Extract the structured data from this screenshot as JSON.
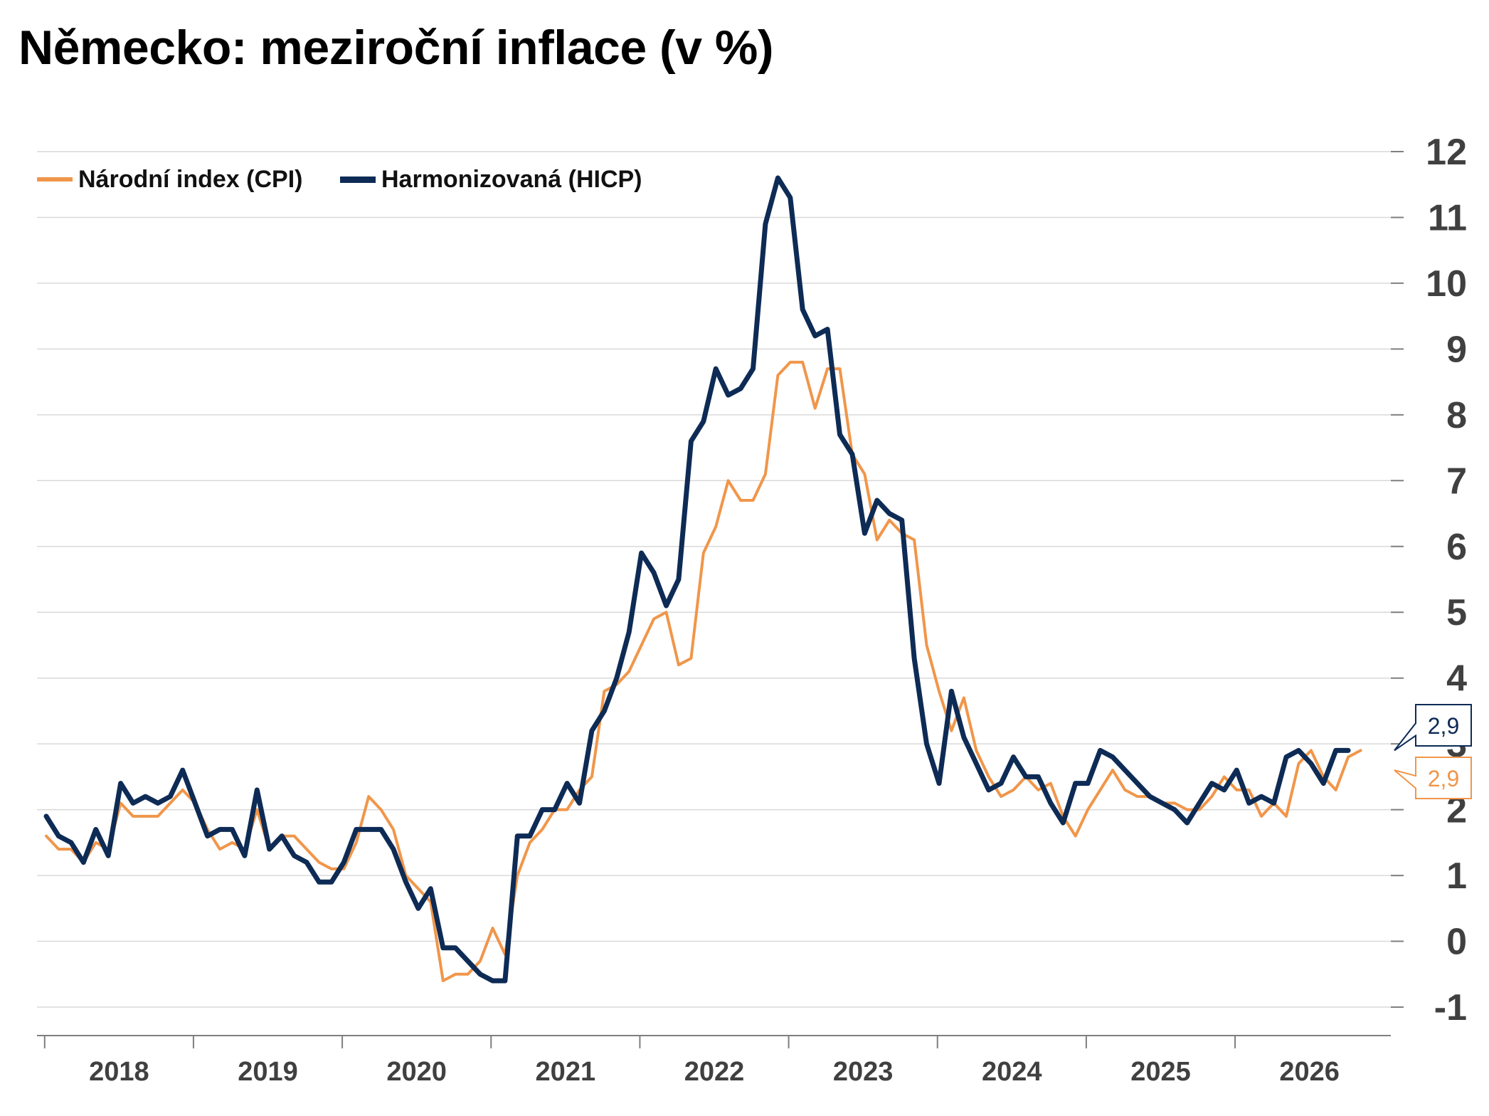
{
  "title": "Německo: meziroční inflace (v %)",
  "colors": {
    "cpi": "#F0964A",
    "hicp": "#0D2B55",
    "grid": "#D9D9D9",
    "axis": "#7F7F7F",
    "tick_text": "#404040"
  },
  "legend": {
    "cpi": "Národní index (CPI)",
    "hicp": "Harmonizovaná (HICP)"
  },
  "chart_data": {
    "type": "line",
    "title": "Německo: meziroční inflace (v %)",
    "y_axis_position": "right",
    "ylim": [
      -1,
      12
    ],
    "yticks": [
      "-1",
      "0",
      "1",
      "2",
      "3",
      "4",
      "5",
      "6",
      "7",
      "8",
      "9",
      "10",
      "11",
      "12"
    ],
    "xlim": [
      "2017-12",
      "2026-08"
    ],
    "x_labels": [
      "2018",
      "2019",
      "2020",
      "2021",
      "2022",
      "2023",
      "2024",
      "2025",
      "2026"
    ],
    "grid": true,
    "legend_position": "top-left",
    "start_month": "2018-01",
    "series": [
      {
        "name": "Národní index (CPI)",
        "color": "#F0964A",
        "values": [
          1.6,
          1.4,
          1.4,
          1.2,
          1.5,
          1.4,
          2.1,
          1.9,
          1.9,
          1.9,
          2.1,
          2.3,
          2.1,
          1.7,
          1.4,
          1.5,
          1.4,
          2.0,
          1.4,
          1.6,
          1.6,
          1.4,
          1.2,
          1.1,
          1.1,
          1.5,
          2.2,
          2.0,
          1.7,
          1.0,
          0.8,
          0.6,
          -0.6,
          -0.5,
          -0.5,
          -0.3,
          0.2,
          -0.2,
          1.0,
          1.5,
          1.7,
          2.0,
          2.0,
          2.3,
          2.5,
          3.8,
          3.9,
          4.1,
          4.5,
          4.9,
          5.0,
          4.2,
          4.3,
          5.9,
          6.3,
          7.0,
          6.7,
          6.7,
          7.1,
          8.6,
          8.8,
          8.8,
          8.1,
          8.7,
          8.7,
          7.4,
          7.1,
          6.1,
          6.4,
          6.2,
          6.1,
          4.5,
          3.8,
          3.2,
          3.7,
          2.9,
          2.5,
          2.2,
          2.3,
          2.5,
          2.3,
          2.4,
          1.9,
          1.6,
          2.0,
          2.3,
          2.6,
          2.3,
          2.2,
          2.2,
          2.1,
          2.1,
          2.0,
          2.0,
          2.2,
          2.5,
          2.3,
          2.3,
          1.9,
          2.1,
          1.9,
          2.7,
          2.9,
          2.5,
          2.3,
          2.8,
          2.9
        ]
      },
      {
        "name": "Harmonizovaná (HICP)",
        "color": "#0D2B55",
        "values": [
          1.9,
          1.6,
          1.5,
          1.2,
          1.7,
          1.3,
          2.4,
          2.1,
          2.2,
          2.1,
          2.2,
          2.6,
          2.1,
          1.6,
          1.7,
          1.7,
          1.3,
          2.3,
          1.4,
          1.6,
          1.3,
          1.2,
          0.9,
          0.9,
          1.2,
          1.7,
          1.7,
          1.7,
          1.4,
          0.9,
          0.5,
          0.8,
          -0.1,
          -0.1,
          -0.3,
          -0.5,
          -0.6,
          -0.6,
          1.6,
          1.6,
          2.0,
          2.0,
          2.4,
          2.1,
          3.2,
          3.5,
          4.0,
          4.7,
          5.9,
          5.6,
          5.1,
          5.5,
          7.6,
          7.9,
          8.7,
          8.3,
          8.4,
          8.7,
          10.9,
          11.6,
          11.3,
          9.6,
          9.2,
          9.3,
          7.7,
          7.4,
          6.2,
          6.7,
          6.5,
          6.4,
          4.3,
          3.0,
          2.4,
          3.8,
          3.1,
          2.7,
          2.3,
          2.4,
          2.8,
          2.5,
          2.5,
          2.1,
          1.8,
          2.4,
          2.4,
          2.9,
          2.8,
          2.6,
          2.4,
          2.2,
          2.1,
          2.0,
          1.8,
          2.1,
          2.4,
          2.3,
          2.6,
          2.1,
          2.2,
          2.1,
          2.8,
          2.9,
          2.7,
          2.4,
          2.9,
          2.9
        ]
      }
    ],
    "end_labels": {
      "hicp": "2,9",
      "cpi": "2,9"
    }
  }
}
